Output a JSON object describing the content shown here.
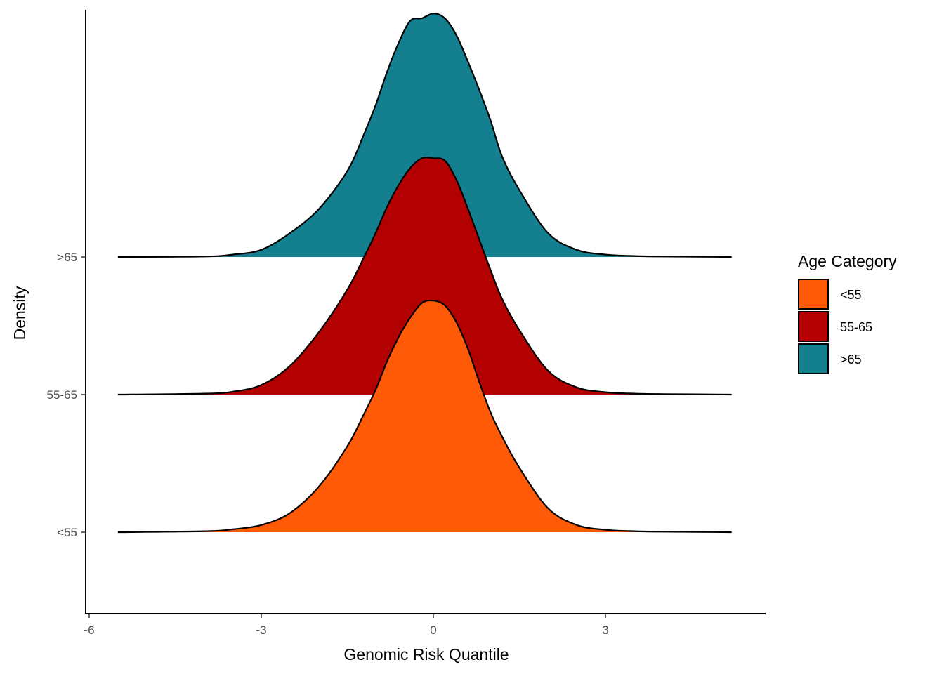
{
  "chart_data": {
    "type": "ridgeline",
    "xlabel": "Genomic Risk Quantile",
    "ylabel": "Density",
    "xlim": [
      -6,
      5.7
    ],
    "x_ticks": [
      -6,
      -3,
      0,
      3
    ],
    "x_tick_labels": [
      "-6",
      "-3",
      "0",
      "3"
    ],
    "y_categories": [
      "<55",
      "55-65",
      ">65"
    ],
    "density_range": [
      -5.5,
      5.2
    ],
    "legend": {
      "title": "Age Category",
      "position": "right",
      "items": [
        {
          "label": "<55",
          "color": "#FF5A08"
        },
        {
          "label": "55-65",
          "color": "#B30000"
        },
        {
          "label": ">65",
          "color": "#137F8F"
        }
      ]
    },
    "series": [
      {
        "name": "<55",
        "color": "#FF5A08",
        "x": [
          -5.5,
          -4,
          -3.5,
          -3,
          -2.5,
          -2,
          -1.5,
          -1.2,
          -1,
          -0.8,
          -0.6,
          -0.4,
          -0.2,
          0,
          0.2,
          0.4,
          0.6,
          0.8,
          1,
          1.2,
          1.5,
          2,
          2.5,
          3,
          3.5,
          4,
          5.2
        ],
        "y": [
          0,
          0.004,
          0.012,
          0.03,
          0.08,
          0.19,
          0.36,
          0.5,
          0.6,
          0.72,
          0.82,
          0.9,
          0.96,
          0.97,
          0.95,
          0.88,
          0.77,
          0.63,
          0.5,
          0.4,
          0.27,
          0.1,
          0.03,
          0.01,
          0.004,
          0.002,
          0
        ]
      },
      {
        "name": "55-65",
        "color": "#B30000",
        "x": [
          -5.5,
          -4,
          -3.5,
          -3,
          -2.5,
          -2,
          -1.5,
          -1.2,
          -1,
          -0.8,
          -0.6,
          -0.4,
          -0.2,
          0,
          0.2,
          0.4,
          0.6,
          0.8,
          1,
          1.2,
          1.5,
          2,
          2.5,
          3,
          3.5,
          4,
          5.2
        ],
        "y": [
          0,
          0.004,
          0.012,
          0.04,
          0.12,
          0.26,
          0.44,
          0.58,
          0.68,
          0.79,
          0.88,
          0.95,
          0.99,
          0.99,
          0.98,
          0.9,
          0.78,
          0.65,
          0.52,
          0.4,
          0.27,
          0.1,
          0.03,
          0.01,
          0.004,
          0.002,
          0
        ]
      },
      {
        "name": ">65",
        "color": "#137F8F",
        "x": [
          -5.5,
          -4,
          -3.5,
          -3,
          -2.5,
          -2,
          -1.5,
          -1.2,
          -1,
          -0.8,
          -0.6,
          -0.4,
          -0.2,
          0,
          0.2,
          0.4,
          0.6,
          0.8,
          1,
          1.2,
          1.5,
          2,
          2.5,
          3,
          3.5,
          4,
          5.2
        ],
        "y": [
          0,
          0.002,
          0.01,
          0.03,
          0.1,
          0.2,
          0.36,
          0.52,
          0.64,
          0.78,
          0.9,
          0.99,
          1.0,
          1.02,
          1.0,
          0.93,
          0.82,
          0.7,
          0.57,
          0.42,
          0.28,
          0.1,
          0.03,
          0.01,
          0.004,
          0.002,
          0
        ]
      }
    ]
  }
}
